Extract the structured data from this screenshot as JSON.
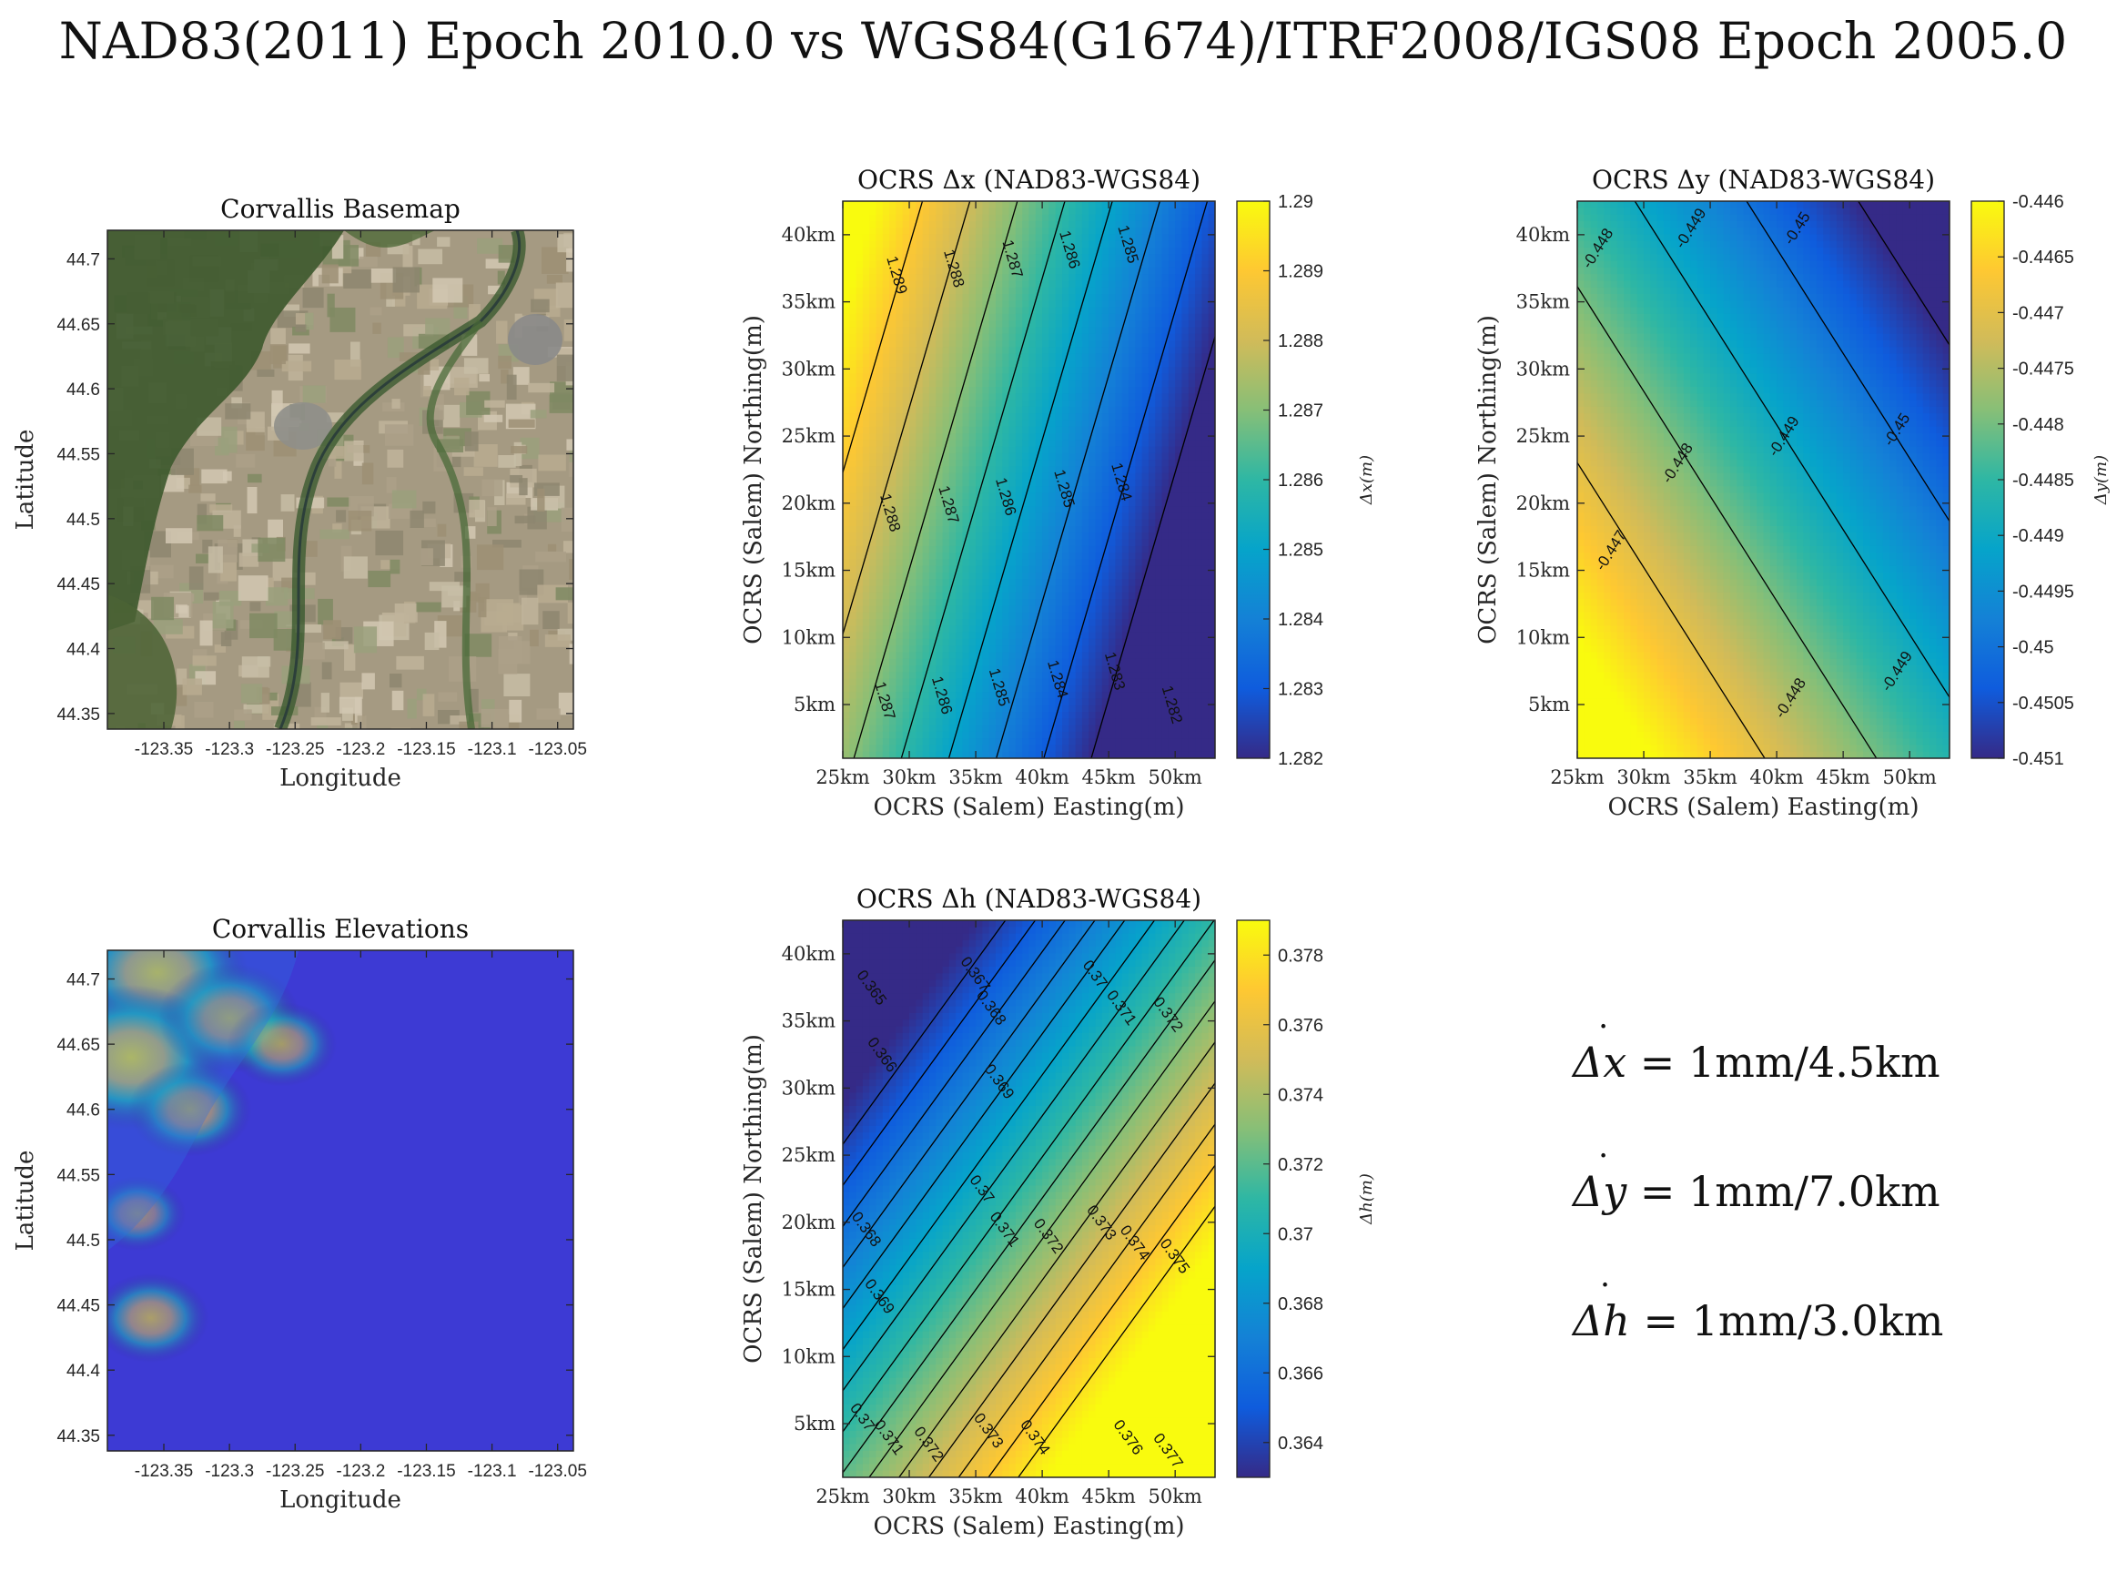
{
  "figure": {
    "title": "NAD83(2011) Epoch 2010.0 vs WGS84(G1674)/ITRF2008/IGS08 Epoch 2005.0"
  },
  "colors": {
    "parula": [
      "#352a87",
      "#0f5cdd",
      "#1481d6",
      "#06a4ca",
      "#2eb7a4",
      "#87bf77",
      "#d1bb59",
      "#fec832",
      "#f9fb0e"
    ],
    "elevation_base": "#3d3ad4",
    "contour": "#000000"
  },
  "formulas": [
    {
      "symbol": "Δ",
      "var": "x",
      "rest": " = 1mm/4.5km"
    },
    {
      "symbol": "Δ",
      "var": "y",
      "rest": " = 1mm/7.0km"
    },
    {
      "symbol": "Δ",
      "var": "h",
      "rest": " = 1mm/3.0km"
    }
  ],
  "chart_data": [
    {
      "id": "basemap",
      "type": "image",
      "title": "Corvallis Basemap",
      "xlabel": "Longitude",
      "ylabel": "Latitude",
      "xlim": [
        -123.393,
        -123.038
      ],
      "ylim": [
        44.338,
        44.722
      ],
      "xticks": [
        -123.35,
        -123.3,
        -123.25,
        -123.2,
        -123.15,
        -123.1,
        -123.05
      ],
      "yticks": [
        44.35,
        44.4,
        44.45,
        44.5,
        44.55,
        44.6,
        44.65,
        44.7
      ],
      "image_content": "satellite basemap"
    },
    {
      "id": "elevations",
      "type": "heatmap",
      "title": "Corvallis Elevations",
      "xlabel": "Longitude",
      "ylabel": "Latitude",
      "xlim": [
        -123.393,
        -123.038
      ],
      "ylim": [
        44.338,
        44.722
      ],
      "xticks": [
        -123.35,
        -123.3,
        -123.25,
        -123.2,
        -123.15,
        -123.1,
        -123.05
      ],
      "yticks": [
        44.35,
        44.4,
        44.45,
        44.5,
        44.55,
        44.6,
        44.65,
        44.7
      ],
      "high_regions": [
        {
          "lon": -123.355,
          "lat": 44.705,
          "level": 0.85
        },
        {
          "lon": -123.375,
          "lat": 44.64,
          "level": 0.9
        },
        {
          "lon": -123.3,
          "lat": 44.67,
          "level": 0.55
        },
        {
          "lon": -123.33,
          "lat": 44.6,
          "level": 0.4
        },
        {
          "lon": -123.26,
          "lat": 44.65,
          "level": 0.3
        },
        {
          "lon": -123.36,
          "lat": 44.44,
          "level": 0.35
        },
        {
          "lon": -123.37,
          "lat": 44.52,
          "level": 0.2
        }
      ]
    },
    {
      "id": "dx",
      "type": "heatmap",
      "title": "OCRS Δx (NAD83-WGS84)",
      "xlabel": "OCRS (Salem) Easting(m)",
      "ylabel": "OCRS (Salem) Northing(m)",
      "colorbar_label": "Δx(m)",
      "xlim": [
        25,
        53
      ],
      "ylim": [
        1,
        42.5
      ],
      "xticks": [
        25,
        30,
        35,
        40,
        45,
        50
      ],
      "xticklabels": [
        "25km",
        "30km",
        "35km",
        "40km",
        "45km",
        "50km"
      ],
      "yticks": [
        5,
        10,
        15,
        20,
        25,
        30,
        35,
        40
      ],
      "yticklabels": [
        "5km",
        "10km",
        "15km",
        "20km",
        "25km",
        "30km",
        "35km",
        "40km"
      ],
      "clim": [
        1.282,
        1.29
      ],
      "cticks": [
        1.282,
        1.283,
        1.284,
        1.285,
        1.286,
        1.287,
        1.288,
        1.289,
        1.29
      ],
      "cticklabels": [
        "1.282",
        "1.283",
        "1.284",
        "1.285",
        "1.286",
        "1.287",
        "1.288",
        "1.289",
        "1.29"
      ],
      "field": {
        "e0": 35,
        "n0": 20,
        "v0": 1.28601,
        "de": -0.00028,
        "dn": 8.3e-05
      },
      "contour_levels": [
        1.282,
        1.283,
        1.284,
        1.285,
        1.286,
        1.287,
        1.288,
        1.289
      ],
      "contour_labels": [
        {
          "text": "1.289",
          "e": 29.1,
          "n": 37.0
        },
        {
          "text": "1.288",
          "e": 33.4,
          "n": 37.5
        },
        {
          "text": "1.287",
          "e": 37.8,
          "n": 38.2
        },
        {
          "text": "1.286",
          "e": 42.1,
          "n": 38.9
        },
        {
          "text": "1.285",
          "e": 46.5,
          "n": 39.3
        },
        {
          "text": "1.288",
          "e": 28.6,
          "n": 19.3
        },
        {
          "text": "1.287",
          "e": 33.0,
          "n": 19.9
        },
        {
          "text": "1.286",
          "e": 37.3,
          "n": 20.5
        },
        {
          "text": "1.285",
          "e": 41.7,
          "n": 21.1
        },
        {
          "text": "1.284",
          "e": 46.0,
          "n": 21.6
        },
        {
          "text": "1.287",
          "e": 28.2,
          "n": 5.3
        },
        {
          "text": "1.286",
          "e": 32.5,
          "n": 5.7
        },
        {
          "text": "1.285",
          "e": 36.8,
          "n": 6.3
        },
        {
          "text": "1.284",
          "e": 41.2,
          "n": 6.9
        },
        {
          "text": "1.283",
          "e": 45.5,
          "n": 7.5
        },
        {
          "text": "1.282",
          "e": 49.8,
          "n": 5.0
        }
      ]
    },
    {
      "id": "dy",
      "type": "heatmap",
      "title": "OCRS Δy (NAD83-WGS84)",
      "xlabel": "OCRS (Salem) Easting(m)",
      "ylabel": "OCRS (Salem) Northing(m)",
      "colorbar_label": "Δy(m)",
      "xlim": [
        25,
        53
      ],
      "ylim": [
        1,
        42.5
      ],
      "xticks": [
        25,
        30,
        35,
        40,
        45,
        50
      ],
      "xticklabels": [
        "25km",
        "30km",
        "35km",
        "40km",
        "45km",
        "50km"
      ],
      "yticks": [
        5,
        10,
        15,
        20,
        25,
        30,
        35,
        40
      ],
      "yticklabels": [
        "5km",
        "10km",
        "15km",
        "20km",
        "25km",
        "30km",
        "35km",
        "40km"
      ],
      "clim": [
        -0.451,
        -0.446
      ],
      "cticks": [
        -0.451,
        -0.4505,
        -0.45,
        -0.4495,
        -0.449,
        -0.4485,
        -0.448,
        -0.4475,
        -0.447,
        -0.4465,
        -0.446
      ],
      "cticklabels": [
        "-0.451",
        "-0.4505",
        "-0.45",
        "-0.4495",
        "-0.449",
        "-0.4485",
        "-0.448",
        "-0.4475",
        "-0.447",
        "-0.4465",
        "-0.446"
      ],
      "field": {
        "e0": 35,
        "n0": 20,
        "v0": -0.44796,
        "de": -0.000119,
        "dn": -7.62e-05
      },
      "contour_levels": [
        -0.451,
        -0.45,
        -0.449,
        -0.448,
        -0.447
      ],
      "contour_labels": [
        {
          "text": "-0.448",
          "e": 26.5,
          "n": 39.0
        },
        {
          "text": "-0.449",
          "e": 33.5,
          "n": 40.5
        },
        {
          "text": "-0.45",
          "e": 41.5,
          "n": 40.5
        },
        {
          "text": "-0.448",
          "e": 32.5,
          "n": 23.0
        },
        {
          "text": "-0.449",
          "e": 40.5,
          "n": 25.0
        },
        {
          "text": "-0.45",
          "e": 49.0,
          "n": 25.5
        },
        {
          "text": "-0.447",
          "e": 27.5,
          "n": 16.5
        },
        {
          "text": "-0.448",
          "e": 41.0,
          "n": 5.5
        },
        {
          "text": "-0.449",
          "e": 49.0,
          "n": 7.5
        }
      ]
    },
    {
      "id": "dh",
      "type": "heatmap",
      "title": "OCRS Δh (NAD83-WGS84)",
      "xlabel": "OCRS (Salem) Easting(m)",
      "ylabel": "OCRS (Salem) Northing(m)",
      "colorbar_label": "Δh(m)",
      "xlim": [
        25,
        53
      ],
      "ylim": [
        1,
        42.5
      ],
      "xticks": [
        25,
        30,
        35,
        40,
        45,
        50
      ],
      "xticklabels": [
        "25km",
        "30km",
        "35km",
        "40km",
        "45km",
        "50km"
      ],
      "yticks": [
        5,
        10,
        15,
        20,
        25,
        30,
        35,
        40
      ],
      "yticklabels": [
        "5km",
        "10km",
        "15km",
        "20km",
        "25km",
        "30km",
        "35km",
        "40km"
      ],
      "clim": [
        0.363,
        0.379
      ],
      "cticks": [
        0.364,
        0.366,
        0.368,
        0.37,
        0.372,
        0.374,
        0.376,
        0.378
      ],
      "cticklabels": [
        "0.364",
        "0.366",
        "0.368",
        "0.37",
        "0.372",
        "0.374",
        "0.376",
        "0.378"
      ],
      "field": {
        "e0": 35,
        "n0": 20,
        "v0": 0.37036,
        "de": 0.000446,
        "dn": -0.000327
      },
      "contour_levels": [
        0.364,
        0.365,
        0.366,
        0.367,
        0.368,
        0.369,
        0.37,
        0.371,
        0.372,
        0.373,
        0.374,
        0.375,
        0.376,
        0.377,
        0.378
      ],
      "contour_labels": [
        {
          "text": "0.365",
          "e": 27.2,
          "n": 37.5
        },
        {
          "text": "0.366",
          "e": 28.0,
          "n": 32.5
        },
        {
          "text": "0.367",
          "e": 35.0,
          "n": 38.5
        },
        {
          "text": "0.368",
          "e": 36.2,
          "n": 36.0
        },
        {
          "text": "0.369",
          "e": 36.8,
          "n": 30.5
        },
        {
          "text": "0.37",
          "e": 44.0,
          "n": 38.5
        },
        {
          "text": "0.371",
          "e": 46.0,
          "n": 36.0
        },
        {
          "text": "0.372",
          "e": 49.5,
          "n": 35.5
        },
        {
          "text": "0.368",
          "e": 26.8,
          "n": 19.5
        },
        {
          "text": "0.369",
          "e": 27.8,
          "n": 14.5
        },
        {
          "text": "0.37",
          "e": 35.5,
          "n": 22.5
        },
        {
          "text": "0.371",
          "e": 37.2,
          "n": 19.5
        },
        {
          "text": "0.372",
          "e": 40.5,
          "n": 19.0
        },
        {
          "text": "0.373",
          "e": 44.5,
          "n": 20.0
        },
        {
          "text": "0.374",
          "e": 47.0,
          "n": 18.5
        },
        {
          "text": "0.375",
          "e": 50.0,
          "n": 17.5
        },
        {
          "text": "0.37",
          "e": 26.5,
          "n": 5.5
        },
        {
          "text": "0.371",
          "e": 28.5,
          "n": 4.0
        },
        {
          "text": "0.372",
          "e": 31.5,
          "n": 3.5
        },
        {
          "text": "0.373",
          "e": 36.0,
          "n": 4.5
        },
        {
          "text": "0.374",
          "e": 39.5,
          "n": 4.0
        },
        {
          "text": "0.376",
          "e": 46.5,
          "n": 4.0
        },
        {
          "text": "0.377",
          "e": 49.5,
          "n": 3.0
        }
      ]
    }
  ]
}
